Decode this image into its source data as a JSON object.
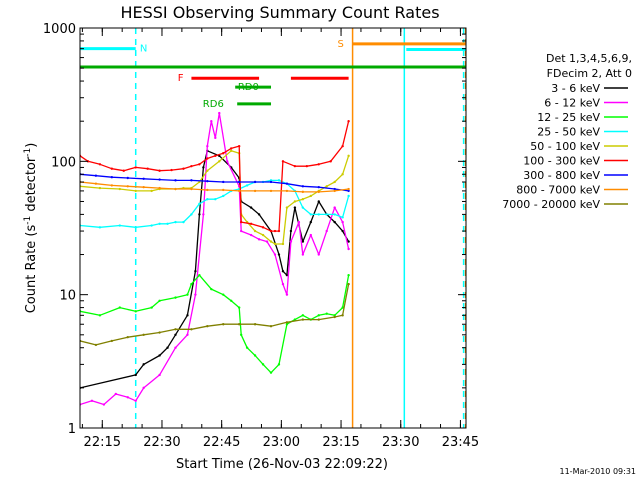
{
  "chart_data": {
    "type": "line",
    "title": "HESSI Observing Summary Count Rates",
    "xlabel": "Start Time (26-Nov-03 22:09:22)",
    "ylabel_main": "Count Rate (s",
    "ylabel_sup1": "-1",
    "ylabel_mid": " detector",
    "ylabel_sup2": "-1",
    "ylabel_end": ")",
    "yscale": "log",
    "ylim": [
      1,
      1000
    ],
    "xlim_minutes": [
      0,
      97
    ],
    "x_ticks": [
      {
        "t": 5.6,
        "label": "22:15"
      },
      {
        "t": 20.6,
        "label": "22:30"
      },
      {
        "t": 35.6,
        "label": "22:45"
      },
      {
        "t": 50.6,
        "label": "23:00"
      },
      {
        "t": 65.6,
        "label": "23:15"
      },
      {
        "t": 80.6,
        "label": "23:30"
      },
      {
        "t": 95.6,
        "label": "23:45"
      }
    ],
    "y_ticks": [
      {
        "v": 1,
        "label": "1"
      },
      {
        "v": 10,
        "label": "10"
      },
      {
        "v": 100,
        "label": "100"
      },
      {
        "v": 1000,
        "label": "1000"
      }
    ],
    "legend_header": [
      "Det 1,3,4,5,6,9,",
      "FDecim 2, Att 0"
    ],
    "legend_placement": "right",
    "footer_date": "11-Mar-2010 09:31",
    "flags": [
      {
        "label": "N",
        "color": "#00ffff",
        "y": 700,
        "t0": 0,
        "t1": 14.0,
        "dashed_line_t": 14.0,
        "label_t": 16.0
      },
      {
        "label": "F",
        "color": "#ff0000",
        "y": 420,
        "t0": 28.0,
        "t1": 45.0,
        "label_t": 25.3
      },
      {
        "label": "RD0",
        "color": "#00aa00",
        "y": 360,
        "t0": 39.0,
        "t1": 48.0,
        "label_t": 42.3
      },
      {
        "label": "RD6",
        "color": "#00aa00",
        "y": 270,
        "t0": 39.5,
        "t1": 48.0,
        "label_t": 33.5
      },
      {
        "label": "S",
        "color": "#ff8c00",
        "y": 760,
        "t0": 68.5,
        "t1": 97,
        "label_t": 65.5
      }
    ],
    "extra_segments": [
      {
        "color": "#ff0000",
        "y": 420,
        "t0": 53.0,
        "t1": 67.5
      },
      {
        "color": "#00aa00",
        "y": 510,
        "t0": 0,
        "t1": 97
      },
      {
        "color": "#00ffff",
        "y": 690,
        "t0": 82.0,
        "t1": 97
      }
    ],
    "vlines": [
      {
        "t": 68.5,
        "color": "#ff8c00",
        "dashed": false
      },
      {
        "t": 81.5,
        "color": "#00ffff",
        "dashed": false
      },
      {
        "t": 96.4,
        "color": "#00ffff",
        "dashed": true
      },
      {
        "t": 96.9,
        "color": "#ff8c00",
        "dashed": true
      },
      {
        "t": 14.0,
        "color": "#00ffff",
        "dashed": true
      }
    ],
    "series": [
      {
        "name": "3 - 6 keV",
        "color": "#000000",
        "t": [
          0,
          14,
          16,
          20,
          22,
          24,
          27,
          29,
          30,
          31,
          32,
          35,
          38,
          40,
          40.5,
          43,
          45,
          48,
          50,
          51,
          52,
          53,
          54,
          56,
          58,
          60,
          62,
          64,
          66,
          67.5
        ],
        "v": [
          2,
          2.5,
          3,
          3.5,
          4,
          5,
          7,
          15,
          40,
          90,
          120,
          110,
          90,
          75,
          50,
          45,
          40,
          30,
          20,
          15,
          14,
          30,
          45,
          25,
          35,
          50,
          40,
          35,
          30,
          25
        ]
      },
      {
        "name": "6 - 12 keV",
        "color": "#ff00ff",
        "t": [
          0,
          3,
          6,
          9,
          12,
          14,
          16,
          20,
          24,
          27,
          29,
          31,
          32,
          33,
          34,
          35,
          37,
          40,
          40.5,
          43,
          45,
          47,
          49,
          51,
          52,
          53,
          55,
          56,
          58,
          60,
          62,
          64,
          66,
          67.5
        ],
        "v": [
          1.5,
          1.6,
          1.5,
          1.8,
          1.7,
          1.6,
          2,
          2.5,
          4,
          5,
          10,
          40,
          130,
          200,
          150,
          230,
          100,
          65,
          30,
          28,
          26,
          25,
          20,
          12,
          10,
          25,
          35,
          20,
          28,
          20,
          30,
          45,
          35,
          22
        ]
      },
      {
        "name": "12 - 25 keV",
        "color": "#00ff00",
        "t": [
          0,
          5,
          10,
          14,
          18,
          20,
          24,
          27,
          28,
          30,
          33,
          36,
          38,
          40,
          40.5,
          42,
          44,
          46,
          48,
          50,
          52,
          54,
          56,
          58,
          60,
          62,
          64,
          66,
          67.5
        ],
        "v": [
          7.5,
          7,
          8,
          7.5,
          8,
          9,
          9.5,
          10,
          12,
          14,
          11,
          10,
          9,
          8,
          5,
          4,
          3.5,
          3,
          2.6,
          3,
          6,
          6.5,
          7,
          6.5,
          7,
          7.2,
          7,
          8,
          14
        ]
      },
      {
        "name": "25 - 50 keV",
        "color": "#00ffff",
        "t": [
          0,
          5,
          10,
          14,
          18,
          20,
          22,
          24,
          26,
          28,
          30,
          32,
          34,
          36,
          38,
          40,
          42,
          44,
          46,
          48,
          50,
          52,
          54,
          56,
          58,
          60,
          62,
          64,
          66,
          67.5
        ],
        "v": [
          33,
          32,
          33,
          32,
          33,
          34,
          34,
          35,
          35,
          40,
          48,
          52,
          52,
          55,
          60,
          62,
          66,
          70,
          70,
          72,
          72,
          68,
          60,
          45,
          40,
          40,
          40,
          40,
          38,
          55
        ]
      },
      {
        "name": "50 - 100 keV",
        "color": "#cccc00",
        "t": [
          0,
          5,
          10,
          14,
          18,
          20,
          24,
          26,
          28,
          30,
          32,
          35,
          38,
          40,
          40.5,
          42,
          44,
          46,
          48,
          49,
          51,
          52,
          54,
          56,
          58,
          60,
          62,
          64,
          66,
          67.5
        ],
        "v": [
          65,
          63,
          62,
          60,
          60,
          62,
          62,
          63,
          63,
          70,
          85,
          100,
          120,
          115,
          40,
          35,
          30,
          28,
          25,
          24,
          24,
          45,
          50,
          52,
          55,
          60,
          65,
          70,
          80,
          110
        ]
      },
      {
        "name": "100 - 300 keV",
        "color": "#ff0000",
        "t": [
          0,
          2,
          5,
          8,
          11,
          14,
          17,
          20,
          23,
          26,
          28,
          30,
          32,
          34,
          36,
          38,
          40,
          40.5,
          43,
          46,
          48,
          49,
          50,
          51,
          54,
          57,
          60,
          63,
          66,
          67.5
        ],
        "v": [
          110,
          100,
          95,
          88,
          85,
          90,
          88,
          85,
          86,
          88,
          92,
          95,
          105,
          110,
          115,
          125,
          130,
          35,
          34,
          32,
          30,
          30,
          30,
          100,
          92,
          92,
          95,
          100,
          130,
          200
        ]
      },
      {
        "name": "300 - 800 keV",
        "color": "#0000ff",
        "t": [
          0,
          4,
          8,
          12,
          16,
          20,
          24,
          28,
          32,
          36,
          40,
          44,
          48,
          52,
          56,
          60,
          64,
          67.5
        ],
        "v": [
          80,
          78,
          76,
          75,
          74,
          73,
          72,
          72,
          71,
          70,
          70,
          70,
          70,
          68,
          65,
          64,
          62,
          60
        ]
      },
      {
        "name": "800 - 7000 keV",
        "color": "#ff8c00",
        "t": [
          0,
          4,
          8,
          12,
          16,
          20,
          24,
          28,
          32,
          36,
          40,
          44,
          48,
          52,
          56,
          60,
          64,
          67.5
        ],
        "v": [
          70,
          68,
          66,
          65,
          64,
          63,
          62,
          62,
          61,
          61,
          60,
          60,
          60,
          60,
          59,
          59,
          60,
          62
        ]
      },
      {
        "name": "7000 - 20000 keV",
        "color": "#808000",
        "t": [
          0,
          4,
          8,
          12,
          16,
          20,
          24,
          28,
          32,
          36,
          40,
          44,
          48,
          52,
          56,
          60,
          64,
          66,
          67.5
        ],
        "v": [
          4.5,
          4.2,
          4.5,
          4.8,
          5,
          5.2,
          5.5,
          5.5,
          5.8,
          6,
          6,
          6,
          5.8,
          6.2,
          6.5,
          6.5,
          6.8,
          7,
          12
        ]
      }
    ]
  }
}
